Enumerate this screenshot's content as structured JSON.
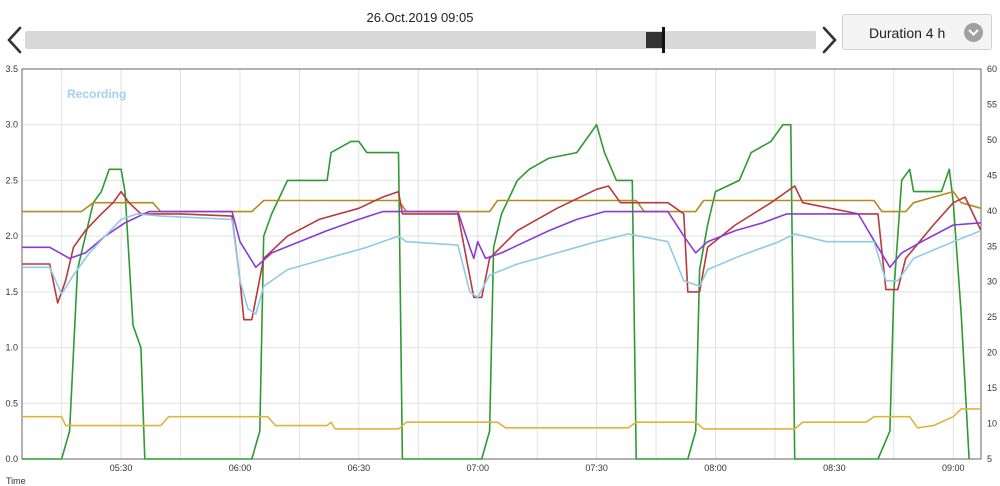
{
  "header": {
    "date_label": "26.Oct.2019 09:05",
    "duration_label": "Duration 4 h",
    "prev_icon": "chevron-left-icon",
    "next_icon": "chevron-right-icon",
    "dropdown_icon": "chevron-down-icon"
  },
  "timeline": {
    "position": 0.8
  },
  "chart_data": {
    "type": "line",
    "legend_text": "Recording",
    "xlabel": "Time",
    "x_range": [
      "05:05",
      "09:07"
    ],
    "x_ticks": [
      "05:30",
      "06:00",
      "06:30",
      "07:00",
      "07:30",
      "08:00",
      "08:30",
      "09:00"
    ],
    "y_left": {
      "lim": [
        0,
        3.5
      ],
      "ticks": [
        "0.0",
        "0.5",
        "1.0",
        "1.5",
        "2.0",
        "2.5",
        "3.0",
        "3.5"
      ]
    },
    "y_right": {
      "lim": [
        5,
        60
      ],
      "ticks": [
        "5",
        "10",
        "15",
        "20",
        "25",
        "30",
        "35",
        "40",
        "45",
        "50",
        "55",
        "60"
      ]
    },
    "grid": true,
    "series": [
      {
        "color": "#2e9a34",
        "axis": "left",
        "points": [
          [
            "05:05",
            0.0
          ],
          [
            "05:15",
            0.0
          ],
          [
            "05:17",
            0.25
          ],
          [
            "05:19",
            1.7
          ],
          [
            "05:21",
            2.0
          ],
          [
            "05:23",
            2.3
          ],
          [
            "05:25",
            2.4
          ],
          [
            "05:27",
            2.6
          ],
          [
            "05:30",
            2.6
          ],
          [
            "05:31",
            2.4
          ],
          [
            "05:33",
            1.2
          ],
          [
            "05:35",
            1.0
          ],
          [
            "05:36",
            0.0
          ],
          [
            "06:03",
            0.0
          ],
          [
            "06:05",
            0.25
          ],
          [
            "06:06",
            2.0
          ],
          [
            "06:08",
            2.2
          ],
          [
            "06:12",
            2.5
          ],
          [
            "06:22",
            2.5
          ],
          [
            "06:23",
            2.75
          ],
          [
            "06:28",
            2.85
          ],
          [
            "06:30",
            2.85
          ],
          [
            "06:32",
            2.75
          ],
          [
            "06:40",
            2.75
          ],
          [
            "06:41",
            0.0
          ],
          [
            "07:01",
            0.0
          ],
          [
            "07:03",
            0.25
          ],
          [
            "07:04",
            1.9
          ],
          [
            "07:06",
            2.2
          ],
          [
            "07:10",
            2.5
          ],
          [
            "07:13",
            2.6
          ],
          [
            "07:18",
            2.7
          ],
          [
            "07:25",
            2.75
          ],
          [
            "07:28",
            2.9
          ],
          [
            "07:30",
            3.0
          ],
          [
            "07:32",
            2.75
          ],
          [
            "07:35",
            2.5
          ],
          [
            "07:39",
            2.5
          ],
          [
            "07:40",
            0.0
          ],
          [
            "07:53",
            0.0
          ],
          [
            "07:55",
            0.25
          ],
          [
            "07:56",
            1.7
          ],
          [
            "07:58",
            2.1
          ],
          [
            "08:00",
            2.4
          ],
          [
            "08:06",
            2.5
          ],
          [
            "08:09",
            2.75
          ],
          [
            "08:14",
            2.85
          ],
          [
            "08:17",
            3.0
          ],
          [
            "08:19",
            3.0
          ],
          [
            "08:20",
            0.0
          ],
          [
            "08:41",
            0.0
          ],
          [
            "08:44",
            0.25
          ],
          [
            "08:45",
            1.5
          ],
          [
            "08:47",
            2.5
          ],
          [
            "08:49",
            2.6
          ],
          [
            "08:50",
            2.4
          ],
          [
            "08:57",
            2.4
          ],
          [
            "08:59",
            2.6
          ],
          [
            "09:00",
            2.3
          ],
          [
            "09:02",
            1.3
          ],
          [
            "09:04",
            0.0
          ]
        ]
      },
      {
        "color": "#b58a1e",
        "axis": "left",
        "points": [
          [
            "05:05",
            2.22
          ],
          [
            "05:20",
            2.22
          ],
          [
            "05:23",
            2.3
          ],
          [
            "05:38",
            2.3
          ],
          [
            "05:40",
            2.22
          ],
          [
            "06:03",
            2.22
          ],
          [
            "06:06",
            2.32
          ],
          [
            "06:40",
            2.32
          ],
          [
            "06:42",
            2.22
          ],
          [
            "07:03",
            2.22
          ],
          [
            "07:05",
            2.32
          ],
          [
            "07:40",
            2.32
          ],
          [
            "07:42",
            2.22
          ],
          [
            "07:55",
            2.22
          ],
          [
            "07:57",
            2.32
          ],
          [
            "08:40",
            2.32
          ],
          [
            "08:42",
            2.22
          ],
          [
            "08:48",
            2.22
          ],
          [
            "08:50",
            2.3
          ],
          [
            "08:55",
            2.35
          ],
          [
            "09:00",
            2.4
          ],
          [
            "09:02",
            2.3
          ],
          [
            "09:07",
            2.25
          ]
        ]
      },
      {
        "color": "#b9393c",
        "axis": "left",
        "points": [
          [
            "05:05",
            1.75
          ],
          [
            "05:12",
            1.75
          ],
          [
            "05:14",
            1.4
          ],
          [
            "05:16",
            1.6
          ],
          [
            "05:18",
            1.9
          ],
          [
            "05:21",
            2.05
          ],
          [
            "05:25",
            2.2
          ],
          [
            "05:28",
            2.3
          ],
          [
            "05:30",
            2.4
          ],
          [
            "05:32",
            2.3
          ],
          [
            "05:35",
            2.2
          ],
          [
            "05:45",
            2.2
          ],
          [
            "05:58",
            2.18
          ],
          [
            "06:00",
            1.6
          ],
          [
            "06:01",
            1.25
          ],
          [
            "06:03",
            1.25
          ],
          [
            "06:06",
            1.8
          ],
          [
            "06:12",
            2.0
          ],
          [
            "06:20",
            2.15
          ],
          [
            "06:30",
            2.25
          ],
          [
            "06:36",
            2.35
          ],
          [
            "06:40",
            2.4
          ],
          [
            "06:41",
            2.2
          ],
          [
            "06:55",
            2.2
          ],
          [
            "06:59",
            1.45
          ],
          [
            "07:01",
            1.45
          ],
          [
            "07:03",
            1.8
          ],
          [
            "07:10",
            2.05
          ],
          [
            "07:20",
            2.25
          ],
          [
            "07:30",
            2.42
          ],
          [
            "07:33",
            2.45
          ],
          [
            "07:36",
            2.3
          ],
          [
            "07:48",
            2.3
          ],
          [
            "07:52",
            2.2
          ],
          [
            "07:53",
            1.5
          ],
          [
            "07:56",
            1.5
          ],
          [
            "07:58",
            1.9
          ],
          [
            "08:05",
            2.1
          ],
          [
            "08:14",
            2.3
          ],
          [
            "08:20",
            2.45
          ],
          [
            "08:22",
            2.3
          ],
          [
            "08:36",
            2.2
          ],
          [
            "08:41",
            2.2
          ],
          [
            "08:43",
            1.52
          ],
          [
            "08:46",
            1.52
          ],
          [
            "08:48",
            1.8
          ],
          [
            "08:55",
            2.1
          ],
          [
            "09:00",
            2.3
          ],
          [
            "09:03",
            2.35
          ],
          [
            "09:05",
            2.2
          ],
          [
            "09:07",
            2.05
          ]
        ]
      },
      {
        "color": "#8a3ad6",
        "axis": "left",
        "points": [
          [
            "05:05",
            1.9
          ],
          [
            "05:12",
            1.9
          ],
          [
            "05:17",
            1.8
          ],
          [
            "05:21",
            1.85
          ],
          [
            "05:26",
            2.0
          ],
          [
            "05:31",
            2.12
          ],
          [
            "05:37",
            2.22
          ],
          [
            "05:45",
            2.22
          ],
          [
            "05:58",
            2.22
          ],
          [
            "06:00",
            1.95
          ],
          [
            "06:04",
            1.72
          ],
          [
            "06:08",
            1.85
          ],
          [
            "06:15",
            1.95
          ],
          [
            "06:22",
            2.05
          ],
          [
            "06:30",
            2.15
          ],
          [
            "06:36",
            2.22
          ],
          [
            "06:55",
            2.22
          ],
          [
            "06:58",
            1.9
          ],
          [
            "06:59",
            1.8
          ],
          [
            "07:00",
            1.95
          ],
          [
            "07:02",
            1.8
          ],
          [
            "07:06",
            1.85
          ],
          [
            "07:12",
            1.95
          ],
          [
            "07:18",
            2.05
          ],
          [
            "07:25",
            2.15
          ],
          [
            "07:32",
            2.22
          ],
          [
            "07:48",
            2.22
          ],
          [
            "07:52",
            2.0
          ],
          [
            "07:55",
            1.85
          ],
          [
            "07:58",
            1.95
          ],
          [
            "08:05",
            2.05
          ],
          [
            "08:12",
            2.12
          ],
          [
            "08:18",
            2.2
          ],
          [
            "08:36",
            2.2
          ],
          [
            "08:41",
            1.9
          ],
          [
            "08:44",
            1.72
          ],
          [
            "08:47",
            1.85
          ],
          [
            "08:52",
            1.95
          ],
          [
            "09:00",
            2.1
          ],
          [
            "09:07",
            2.12
          ]
        ]
      },
      {
        "color": "#8ecbe8",
        "axis": "left",
        "points": [
          [
            "05:05",
            1.72
          ],
          [
            "05:12",
            1.72
          ],
          [
            "05:15",
            1.48
          ],
          [
            "05:18",
            1.65
          ],
          [
            "05:22",
            1.85
          ],
          [
            "05:26",
            2.0
          ],
          [
            "05:30",
            2.15
          ],
          [
            "05:34",
            2.2
          ],
          [
            "05:40",
            2.18
          ],
          [
            "05:58",
            2.15
          ],
          [
            "06:00",
            1.6
          ],
          [
            "06:02",
            1.35
          ],
          [
            "06:04",
            1.3
          ],
          [
            "06:06",
            1.55
          ],
          [
            "06:12",
            1.7
          ],
          [
            "06:22",
            1.8
          ],
          [
            "06:32",
            1.9
          ],
          [
            "06:40",
            2.0
          ],
          [
            "06:42",
            1.95
          ],
          [
            "06:55",
            1.92
          ],
          [
            "06:58",
            1.5
          ],
          [
            "07:00",
            1.45
          ],
          [
            "07:03",
            1.65
          ],
          [
            "07:10",
            1.75
          ],
          [
            "07:20",
            1.85
          ],
          [
            "07:30",
            1.95
          ],
          [
            "07:38",
            2.02
          ],
          [
            "07:48",
            1.95
          ],
          [
            "07:52",
            1.6
          ],
          [
            "07:56",
            1.55
          ],
          [
            "07:58",
            1.7
          ],
          [
            "08:06",
            1.82
          ],
          [
            "08:16",
            1.95
          ],
          [
            "08:20",
            2.02
          ],
          [
            "08:28",
            1.95
          ],
          [
            "08:40",
            1.95
          ],
          [
            "08:43",
            1.6
          ],
          [
            "08:46",
            1.6
          ],
          [
            "08:50",
            1.8
          ],
          [
            "09:00",
            1.95
          ],
          [
            "09:07",
            2.05
          ]
        ]
      },
      {
        "color": "#e0b43c",
        "axis": "left",
        "points": [
          [
            "05:05",
            0.38
          ],
          [
            "05:15",
            0.38
          ],
          [
            "05:16",
            0.3
          ],
          [
            "05:40",
            0.3
          ],
          [
            "05:42",
            0.38
          ],
          [
            "06:07",
            0.38
          ],
          [
            "06:09",
            0.3
          ],
          [
            "06:22",
            0.3
          ],
          [
            "06:23",
            0.33
          ],
          [
            "06:24",
            0.27
          ],
          [
            "06:40",
            0.27
          ],
          [
            "06:42",
            0.33
          ],
          [
            "07:05",
            0.33
          ],
          [
            "07:07",
            0.28
          ],
          [
            "07:38",
            0.28
          ],
          [
            "07:40",
            0.33
          ],
          [
            "07:55",
            0.33
          ],
          [
            "07:57",
            0.27
          ],
          [
            "08:20",
            0.27
          ],
          [
            "08:22",
            0.33
          ],
          [
            "08:38",
            0.33
          ],
          [
            "08:40",
            0.38
          ],
          [
            "08:49",
            0.38
          ],
          [
            "08:51",
            0.28
          ],
          [
            "08:55",
            0.3
          ],
          [
            "09:00",
            0.38
          ],
          [
            "09:02",
            0.45
          ],
          [
            "09:07",
            0.45
          ]
        ]
      }
    ]
  }
}
